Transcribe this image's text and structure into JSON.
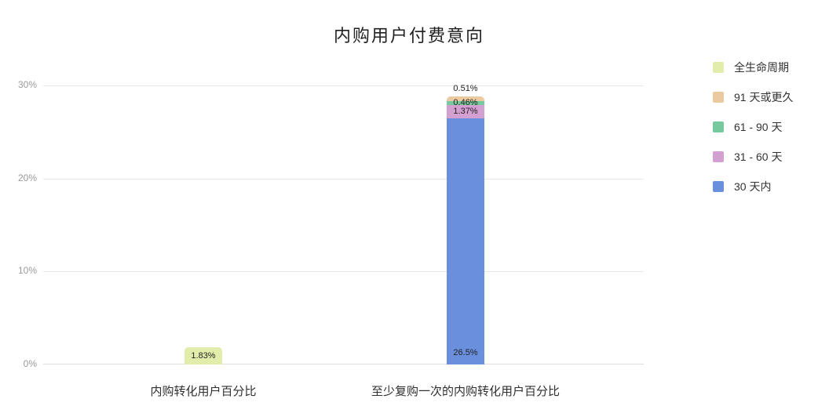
{
  "chart_data": {
    "type": "bar",
    "stacked": true,
    "title": "内购用户付费意向",
    "categories": [
      "内购转化用户百分比",
      "至少复购一次的内购转化用户百分比"
    ],
    "series": [
      {
        "name": "全生命周期",
        "color": "#e3edab",
        "values": [
          1.83,
          null
        ],
        "labels": [
          "1.83%",
          null
        ]
      },
      {
        "name": "91 天或更久",
        "color": "#ebc9a1",
        "values": [
          null,
          0.51
        ],
        "labels": [
          null,
          "0.51%"
        ]
      },
      {
        "name": "61 - 90 天",
        "color": "#76c89d",
        "values": [
          null,
          0.46
        ],
        "labels": [
          null,
          "0.46%"
        ]
      },
      {
        "name": "31 - 60 天",
        "color": "#d4a0d2",
        "values": [
          null,
          1.37
        ],
        "labels": [
          null,
          "1.37%"
        ]
      },
      {
        "name": "30 天内",
        "color": "#6a8fdc",
        "values": [
          null,
          26.5
        ],
        "labels": [
          null,
          "26.5%"
        ]
      }
    ],
    "y_ticks": [
      "0%",
      "10%",
      "20%",
      "30%"
    ],
    "ylim": [
      0,
      30
    ],
    "grid": "horizontal",
    "legend_position": "right",
    "background": "#ffffff",
    "bar_label_color": "#222222"
  }
}
